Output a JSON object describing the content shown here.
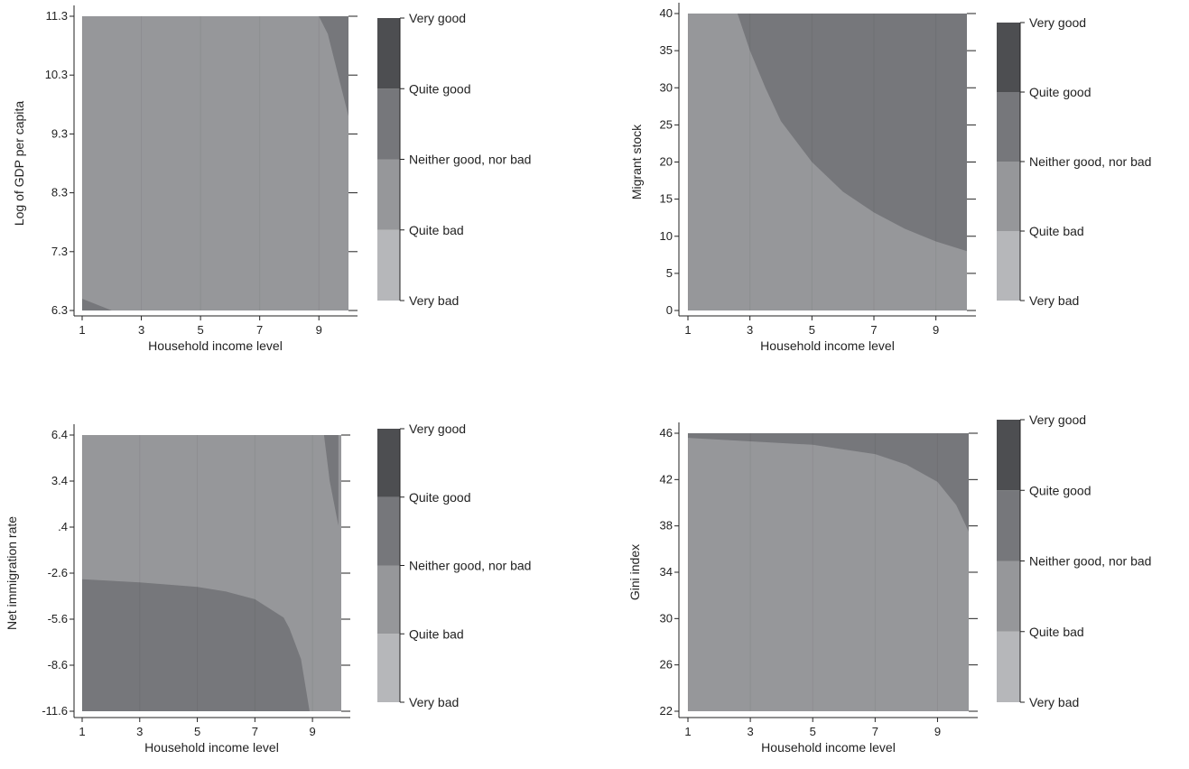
{
  "legend_categories": [
    "Very bad",
    "Quite bad",
    "Neither good, nor bad",
    "Quite good",
    "Very good"
  ],
  "band_colors": {
    "Very bad": "#b6b7ba",
    "Quite bad": "#96979a",
    "Neither good, nor bad": "#76777b",
    "Quite good": "#4d4e51"
  },
  "chart_data": [
    {
      "type": "heatmap",
      "xlabel": "Household income level",
      "ylabel": "Log of GDP per capita",
      "xlim": [
        1,
        10
      ],
      "ylim": [
        6.3,
        11.3
      ],
      "x_ticks": [
        1,
        3,
        5,
        7,
        9
      ],
      "y_ticks": [
        6.3,
        7.3,
        8.3,
        9.3,
        10.3,
        11.3
      ],
      "y_tick_labels": [
        "6.3",
        "7.3",
        "8.3",
        "9.3",
        "10.3",
        "11.3"
      ],
      "background_category": "Quite bad",
      "regions": [
        {
          "category": "Neither good, nor bad",
          "points": [
            [
              9.0,
              11.3
            ],
            [
              10.0,
              11.3
            ],
            [
              10.0,
              9.6
            ],
            [
              9.6,
              10.4
            ],
            [
              9.3,
              11.0
            ]
          ]
        },
        {
          "category": "Neither good, nor bad",
          "points": [
            [
              1.0,
              6.3
            ],
            [
              2.0,
              6.3
            ],
            [
              1.0,
              6.5
            ]
          ]
        }
      ]
    },
    {
      "type": "heatmap",
      "xlabel": "Household income level",
      "ylabel": "Migrant stock",
      "xlim": [
        1,
        10
      ],
      "ylim": [
        0,
        40
      ],
      "x_ticks": [
        1,
        3,
        5,
        7,
        9
      ],
      "y_ticks": [
        0,
        5,
        10,
        15,
        20,
        25,
        30,
        35,
        40
      ],
      "y_tick_labels": [
        "0",
        "5",
        "10",
        "15",
        "20",
        "25",
        "30",
        "35",
        "40"
      ],
      "background_category": "Quite bad",
      "regions": [
        {
          "category": "Neither good, nor bad",
          "points": [
            [
              2.6,
              40
            ],
            [
              10,
              40
            ],
            [
              10,
              8
            ],
            [
              9,
              9.3
            ],
            [
              8,
              11
            ],
            [
              7,
              13.2
            ],
            [
              6,
              16
            ],
            [
              5,
              20
            ],
            [
              4,
              25.5
            ],
            [
              3.5,
              30
            ],
            [
              3,
              35
            ]
          ]
        }
      ]
    },
    {
      "type": "heatmap",
      "xlabel": "Household income level",
      "ylabel": "Net immigration rate",
      "xlim": [
        1,
        10
      ],
      "ylim": [
        -11.6,
        6.4
      ],
      "x_ticks": [
        1,
        3,
        5,
        7,
        9
      ],
      "y_ticks": [
        -11.6,
        -8.6,
        -5.6,
        -2.6,
        0.4,
        3.4,
        6.4
      ],
      "y_tick_labels": [
        "-11.6",
        "-8.6",
        "-5.6",
        "-2.6",
        ".4",
        "3.4",
        "6.4"
      ],
      "background_category": "Quite bad",
      "regions": [
        {
          "category": "Neither good, nor bad",
          "points": [
            [
              1,
              -11.6
            ],
            [
              1,
              -3.0
            ],
            [
              3,
              -3.2
            ],
            [
              5,
              -3.5
            ],
            [
              6,
              -3.8
            ],
            [
              7,
              -4.3
            ],
            [
              8,
              -5.5
            ],
            [
              8.2,
              -6.2
            ],
            [
              8.6,
              -8.2
            ],
            [
              8.9,
              -11.6
            ]
          ]
        },
        {
          "category": "Neither good, nor bad",
          "points": [
            [
              9.4,
              6.4
            ],
            [
              9.9,
              6.4
            ],
            [
              9.9,
              0.5
            ],
            [
              9.6,
              3.4
            ]
          ]
        }
      ]
    },
    {
      "type": "heatmap",
      "xlabel": "Household income level",
      "ylabel": "Gini index",
      "xlim": [
        1,
        10
      ],
      "ylim": [
        22,
        46
      ],
      "x_ticks": [
        1,
        3,
        5,
        7,
        9
      ],
      "y_ticks": [
        22,
        26,
        30,
        34,
        38,
        42,
        46
      ],
      "y_tick_labels": [
        "22",
        "26",
        "30",
        "34",
        "38",
        "42",
        "46"
      ],
      "background_category": "Quite bad",
      "regions": [
        {
          "category": "Neither good, nor bad",
          "points": [
            [
              1,
              46
            ],
            [
              10,
              46
            ],
            [
              10,
              37.5
            ],
            [
              9.6,
              39.8
            ],
            [
              9,
              41.8
            ],
            [
              8,
              43.3
            ],
            [
              7,
              44.2
            ],
            [
              6,
              44.6
            ],
            [
              5,
              45
            ],
            [
              3,
              45.3
            ],
            [
              1,
              45.6
            ]
          ]
        }
      ]
    }
  ]
}
